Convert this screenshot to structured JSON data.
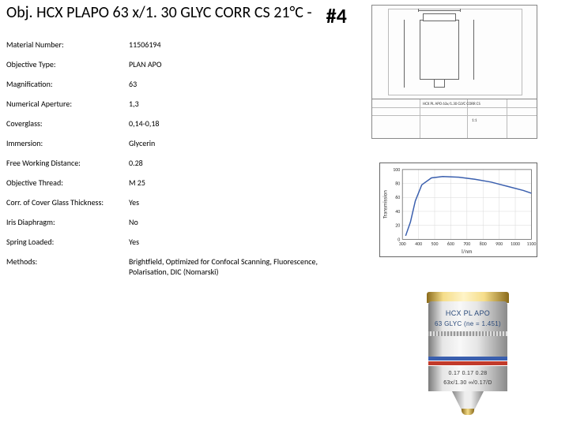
{
  "title": "Obj. HCX PLAPO 63 x/1. 30 GLYC CORR CS 21°C",
  "title_trail": "  -",
  "slide_number": "#4",
  "specs": [
    {
      "label": "Material Number:",
      "value": "11506194"
    },
    {
      "label": "Objective Type:",
      "value": "PLAN APO"
    },
    {
      "label": "Magnification:",
      "value": "63"
    },
    {
      "label": "Numerical Aperture:",
      "value": "1,3"
    },
    {
      "label": "Coverglass:",
      "value": "0,14-0,18"
    },
    {
      "label": "Immersion:",
      "value": "Glycerin"
    },
    {
      "label": "Free Working Distance:",
      "value": "0.28"
    },
    {
      "label": "Objective Thread:",
      "value": "M 25"
    },
    {
      "label": "Corr. of Cover Glass Thickness:",
      "value": "Yes"
    },
    {
      "label": "Iris Diaphragm:",
      "value": "No"
    },
    {
      "label": "Spring Loaded:",
      "value": "Yes"
    },
    {
      "label": "Methods:",
      "value": "Brightfield, Optimized for Confocal Scanning, Fluorescence, Polarisation, DIC (Nomarski)"
    }
  ],
  "diagram": {
    "title_block_text": "HCX PL APO 63x/1.30 GLYC CORR CS",
    "scale_text": "1:1"
  },
  "chart": {
    "type": "line",
    "x_label": "l/nm",
    "y_label": "Transmission",
    "xlim": [
      300,
      1100
    ],
    "ylim": [
      0,
      100
    ],
    "x_ticks": [
      300,
      400,
      500,
      600,
      700,
      800,
      900,
      1000,
      1100
    ],
    "y_ticks": [
      0,
      20,
      40,
      60,
      80,
      100
    ],
    "grid_color": "#d8d8d8",
    "axis_color": "#666666",
    "line_color": "#3a5fae",
    "line_width": 1.5,
    "background_color": "#ffffff",
    "tick_fontsize": 6,
    "label_fontsize": 7,
    "data": [
      {
        "x": 320,
        "y": 5
      },
      {
        "x": 350,
        "y": 25
      },
      {
        "x": 380,
        "y": 55
      },
      {
        "x": 420,
        "y": 78
      },
      {
        "x": 480,
        "y": 88
      },
      {
        "x": 550,
        "y": 90
      },
      {
        "x": 650,
        "y": 89
      },
      {
        "x": 750,
        "y": 86
      },
      {
        "x": 850,
        "y": 82
      },
      {
        "x": 950,
        "y": 76
      },
      {
        "x": 1050,
        "y": 70
      },
      {
        "x": 1100,
        "y": 66
      }
    ]
  },
  "photo": {
    "etch_line1": "HCX PL APO",
    "etch_line2": "63 GLYC (ne = 1.451)",
    "etch_line3": "0.17   0.17   0.28",
    "etch_line4": "63x/1.30   ∞/0.17/D",
    "colors": {
      "gold": "#f5dd8a",
      "silver_light": "#f4f4f4",
      "silver_dark": "#7a7a7a",
      "ring_blue": "#3a5fae",
      "ring_red": "#c23a2a"
    }
  }
}
